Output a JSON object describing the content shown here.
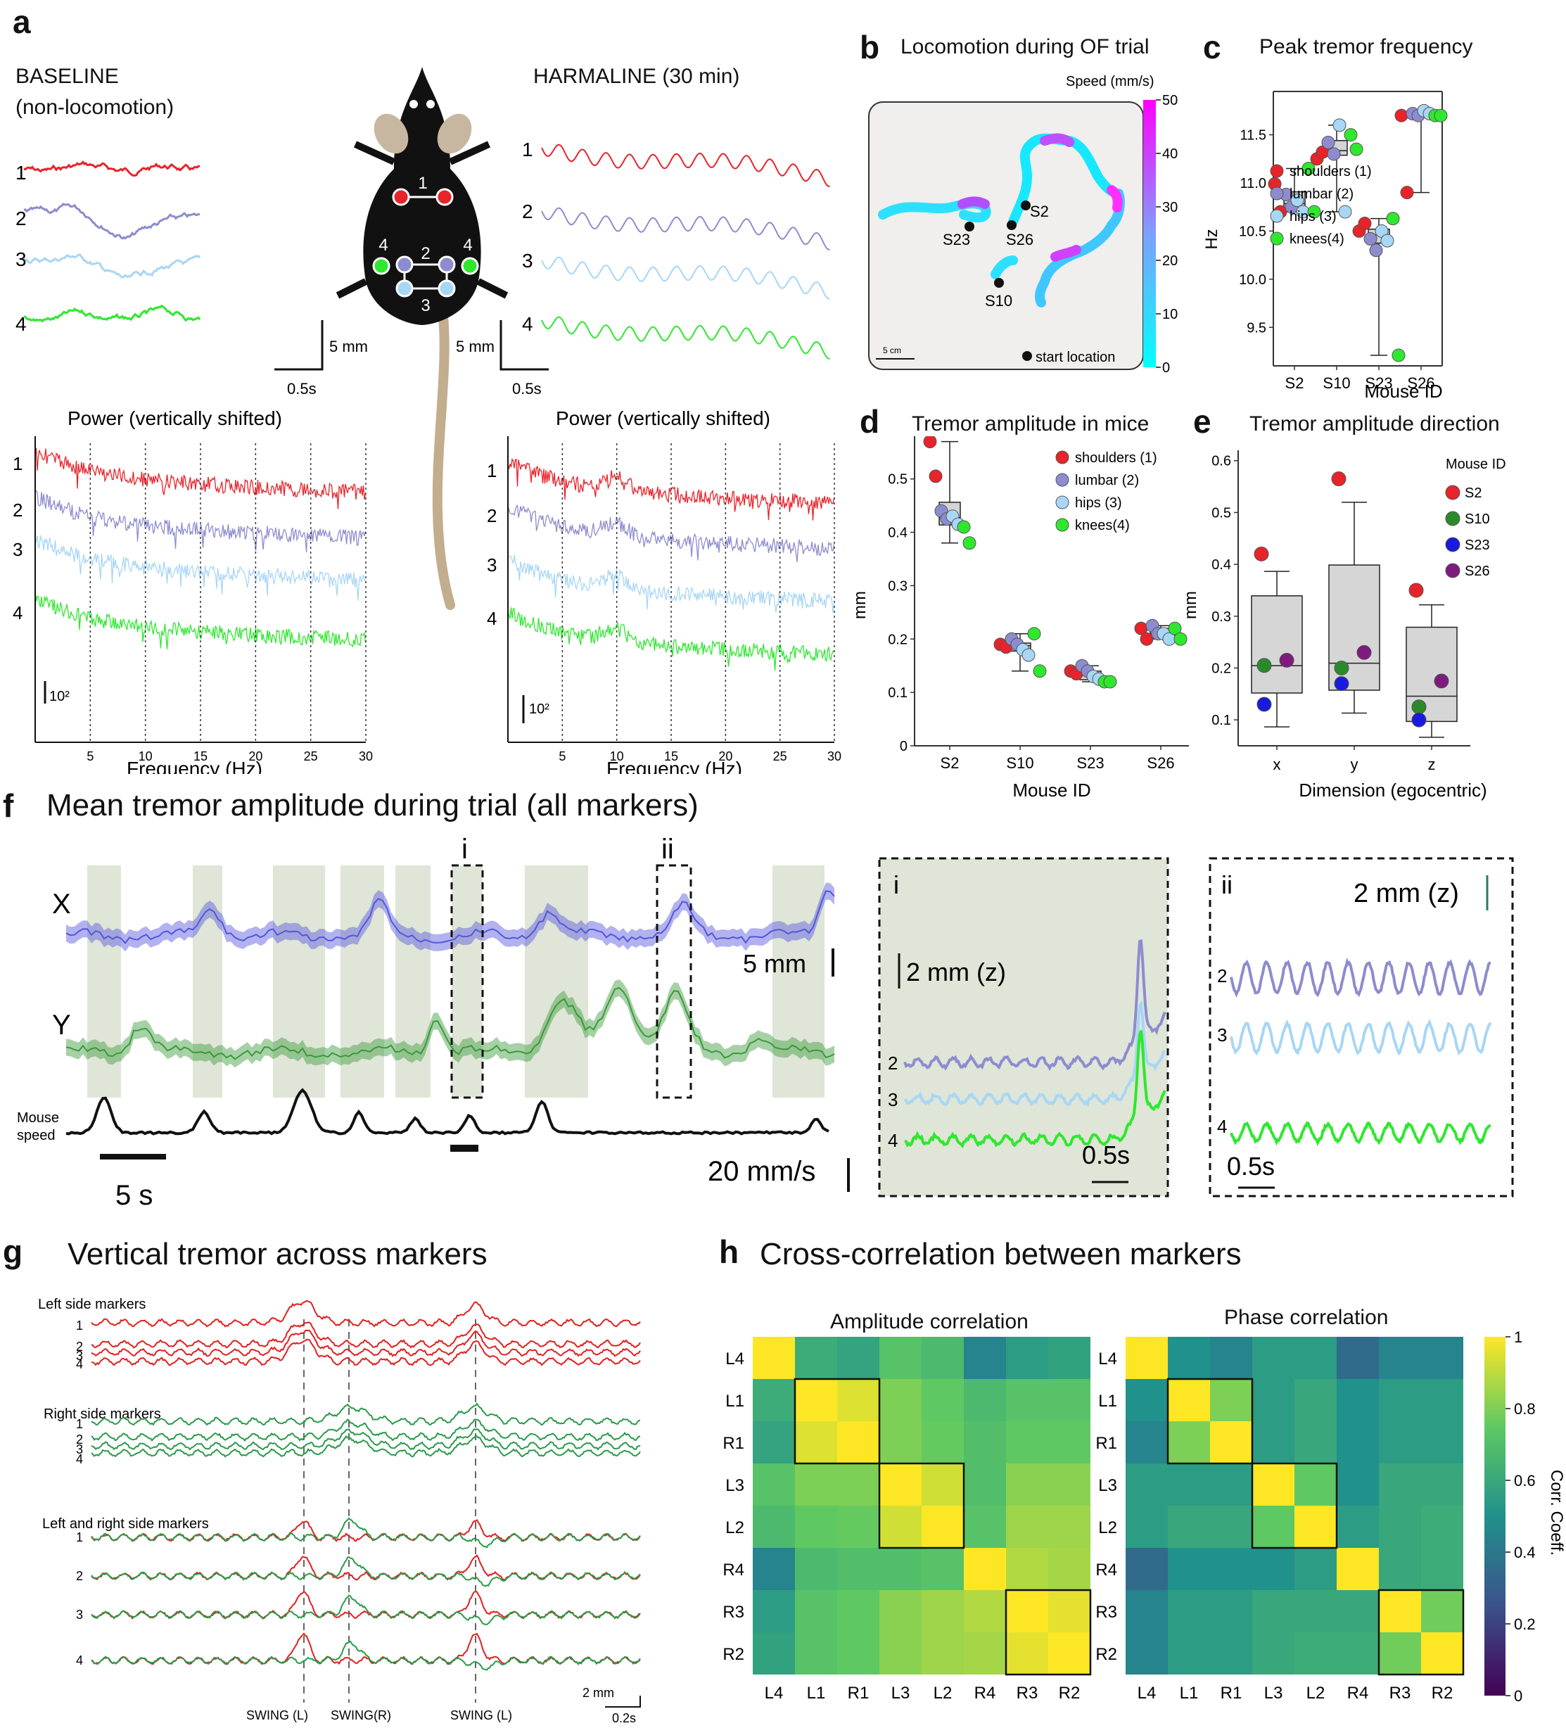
{
  "panel_labels": {
    "a": "a",
    "b": "b",
    "c": "c",
    "d": "d",
    "e": "e",
    "f": "f",
    "g": "g",
    "h": "h"
  },
  "panel_a": {
    "baseline_title_1": "BASELINE",
    "baseline_title_2": "(non-locomotion)",
    "harmaline_title": "HARMALINE (30 min)",
    "trace_labels": [
      "1",
      "2",
      "3",
      "4"
    ],
    "marker_labels": [
      "1",
      "2",
      "3",
      "4",
      "4"
    ],
    "scale_mm": "5 mm",
    "scale_s": "0.5s",
    "power_title": "Power (vertically shifted)",
    "power_scale": "10²",
    "freq_xlabel": "Frequency (Hz)",
    "freq_ticks": [
      "5",
      "10",
      "15",
      "20",
      "25",
      "30"
    ]
  },
  "panel_b": {
    "title": "Locomotion during OF trial",
    "colorbar_title": "Speed (mm/s)",
    "colorbar_ticks": [
      "50",
      "40",
      "30",
      "20",
      "10",
      "0"
    ],
    "start_labels": [
      "S2",
      "S23",
      "S26",
      "S10"
    ],
    "scalebar": "5 cm",
    "legend": "start location"
  },
  "colors": {
    "shoulders": "#e8232a",
    "lumbar": "#8d8ccf",
    "hips": "#a8d6f5",
    "knees": "#2ee82e",
    "S2": "#e8232a",
    "S10": "#2a8a2a",
    "S23": "#1a1adf",
    "S26": "#7f1a7f",
    "x_trace": "#5555dd",
    "y_trace": "#3a9a3a",
    "shade": "#dfe5d7"
  },
  "chart_data": [
    {
      "id": "c",
      "type": "scatter",
      "title": "Peak tremor frequency",
      "xlabel": "Mouse ID",
      "ylabel": "Hz",
      "categories": [
        "S2",
        "S10",
        "S23",
        "S26"
      ],
      "yticks": [
        "9.5",
        "10.0",
        "10.5",
        "11.0",
        "11.5"
      ],
      "ylim": [
        9.1,
        11.95
      ],
      "legend": [
        "shoulders (1)",
        "lumbar (2)",
        "hips (3)",
        "knees(4)"
      ],
      "series": [
        {
          "name": "shoulders (1)",
          "values": [
            [
              10.99,
              10.7
            ],
            [
              11.25,
              11.32
            ],
            [
              10.5,
              10.58
            ],
            [
              11.7,
              10.9
            ]
          ]
        },
        {
          "name": "lumbar (2)",
          "values": [
            [
              10.88,
              10.75
            ],
            [
              11.42,
              11.3
            ],
            [
              10.42,
              10.3
            ],
            [
              11.72,
              11.7
            ]
          ]
        },
        {
          "name": "hips (3)",
          "values": [
            [
              10.82,
              10.7
            ],
            [
              11.6,
              10.7
            ],
            [
              10.5,
              10.4
            ],
            [
              11.75,
              11.72
            ]
          ]
        },
        {
          "name": "knees(4)",
          "values": [
            [
              11.15,
              10.7
            ],
            [
              11.5,
              11.35
            ],
            [
              10.63,
              9.21
            ],
            [
              11.7,
              11.7
            ]
          ]
        }
      ]
    },
    {
      "id": "d",
      "type": "scatter",
      "title": "Tremor amplitude in mice",
      "xlabel": "Mouse ID",
      "ylabel": "mm",
      "categories": [
        "S2",
        "S10",
        "S23",
        "S26"
      ],
      "yticks": [
        "0",
        "0.1",
        "0.2",
        "0.3",
        "0.4",
        "0.5"
      ],
      "ylim": [
        0,
        0.58
      ],
      "legend": [
        "shoulders (1)",
        "lumbar (2)",
        "hips (3)",
        "knees(4)"
      ],
      "series": [
        {
          "name": "shoulders (1)",
          "values": [
            [
              0.57,
              0.505
            ],
            [
              0.19,
              0.185
            ],
            [
              0.14,
              0.135
            ],
            [
              0.22,
              0.2
            ]
          ]
        },
        {
          "name": "lumbar (2)",
          "values": [
            [
              0.44,
              0.425
            ],
            [
              0.2,
              0.19
            ],
            [
              0.15,
              0.14
            ],
            [
              0.225,
              0.21
            ]
          ]
        },
        {
          "name": "hips (3)",
          "values": [
            [
              0.43,
              0.415
            ],
            [
              0.18,
              0.17
            ],
            [
              0.13,
              0.125
            ],
            [
              0.21,
              0.2
            ]
          ]
        },
        {
          "name": "knees(4)",
          "values": [
            [
              0.41,
              0.38
            ],
            [
              0.21,
              0.14
            ],
            [
              0.12,
              0.12
            ],
            [
              0.22,
              0.2
            ]
          ]
        }
      ]
    },
    {
      "id": "e",
      "type": "box",
      "title": "Tremor amplitude direction",
      "xlabel": "Dimension (egocentric)",
      "ylabel": "mm",
      "categories": [
        "x",
        "y",
        "z"
      ],
      "yticks": [
        "0.1",
        "0.2",
        "0.3",
        "0.4",
        "0.5",
        "0.6"
      ],
      "ylim": [
        0.05,
        0.62
      ],
      "legend_title": "Mouse ID",
      "legend": [
        "S2",
        "S10",
        "S23",
        "S26"
      ],
      "series": [
        {
          "name": "S2",
          "values": [
            0.42,
            0.565,
            0.35
          ]
        },
        {
          "name": "S10",
          "values": [
            0.205,
            0.2,
            0.125
          ]
        },
        {
          "name": "S23",
          "values": [
            0.13,
            0.17,
            0.1
          ]
        },
        {
          "name": "S26",
          "values": [
            0.215,
            0.23,
            0.175
          ]
        }
      ]
    },
    {
      "id": "h",
      "type": "heatmap",
      "labels": [
        "L4",
        "L1",
        "R1",
        "L3",
        "L2",
        "R4",
        "R3",
        "R2"
      ],
      "amplitude_title": "Amplitude correlation",
      "phase_title": "Phase correlation",
      "colorbar_label": "Corr. Coeff.",
      "colorbar_ticks": [
        "1",
        "0.8",
        "0.6",
        "0.4",
        "0.2",
        "0"
      ],
      "amplitude": [
        [
          1.0,
          0.62,
          0.58,
          0.72,
          0.68,
          0.45,
          0.55,
          0.57
        ],
        [
          0.62,
          1.0,
          0.95,
          0.8,
          0.75,
          0.68,
          0.72,
          0.72
        ],
        [
          0.58,
          0.95,
          1.0,
          0.8,
          0.76,
          0.7,
          0.75,
          0.75
        ],
        [
          0.72,
          0.8,
          0.8,
          1.0,
          0.93,
          0.7,
          0.82,
          0.82
        ],
        [
          0.68,
          0.75,
          0.76,
          0.93,
          1.0,
          0.72,
          0.85,
          0.85
        ],
        [
          0.45,
          0.68,
          0.7,
          0.7,
          0.72,
          1.0,
          0.88,
          0.86
        ],
        [
          0.55,
          0.72,
          0.75,
          0.82,
          0.85,
          0.88,
          1.0,
          0.96
        ],
        [
          0.57,
          0.72,
          0.75,
          0.82,
          0.85,
          0.86,
          0.96,
          1.0
        ]
      ],
      "phase": [
        [
          1.0,
          0.5,
          0.45,
          0.55,
          0.55,
          0.35,
          0.45,
          0.45
        ],
        [
          0.5,
          1.0,
          0.8,
          0.55,
          0.6,
          0.5,
          0.55,
          0.55
        ],
        [
          0.45,
          0.8,
          1.0,
          0.55,
          0.6,
          0.5,
          0.55,
          0.55
        ],
        [
          0.55,
          0.55,
          0.55,
          1.0,
          0.75,
          0.5,
          0.6,
          0.6
        ],
        [
          0.55,
          0.6,
          0.6,
          0.75,
          1.0,
          0.55,
          0.6,
          0.62
        ],
        [
          0.35,
          0.5,
          0.5,
          0.5,
          0.55,
          1.0,
          0.6,
          0.62
        ],
        [
          0.45,
          0.55,
          0.55,
          0.6,
          0.6,
          0.6,
          1.0,
          0.78
        ],
        [
          0.45,
          0.55,
          0.55,
          0.6,
          0.62,
          0.62,
          0.78,
          1.0
        ]
      ]
    }
  ],
  "panel_f": {
    "title": "Mean tremor amplitude during trial (all markers)",
    "x_label": "X",
    "y_label": "Y",
    "speed_label_1": "Mouse",
    "speed_label_2": "speed",
    "scale_mm": "5 mm",
    "scale_time": "5 s",
    "scale_speed": "20 mm/s",
    "box_i": "i",
    "box_ii": "ii",
    "inset_i_scale": "2 mm (z)",
    "inset_ii_scale": "2 mm (z)",
    "inset_time": "0.5s",
    "inset_traces": [
      "2",
      "3",
      "4"
    ]
  },
  "panel_g": {
    "title": "Vertical tremor across markers",
    "left_title": "Left side markers",
    "right_title": "Right side markers",
    "both_title": "Left  and right side markers",
    "trace_numbers": [
      "1",
      "2",
      "3",
      "4"
    ],
    "swing_labels": [
      "SWING (L)",
      "SWING(R)",
      "SWING (L)"
    ],
    "scale_mm": "2 mm",
    "scale_s": "0.2s"
  },
  "panel_h": {
    "title": "Cross-correlation between markers"
  }
}
